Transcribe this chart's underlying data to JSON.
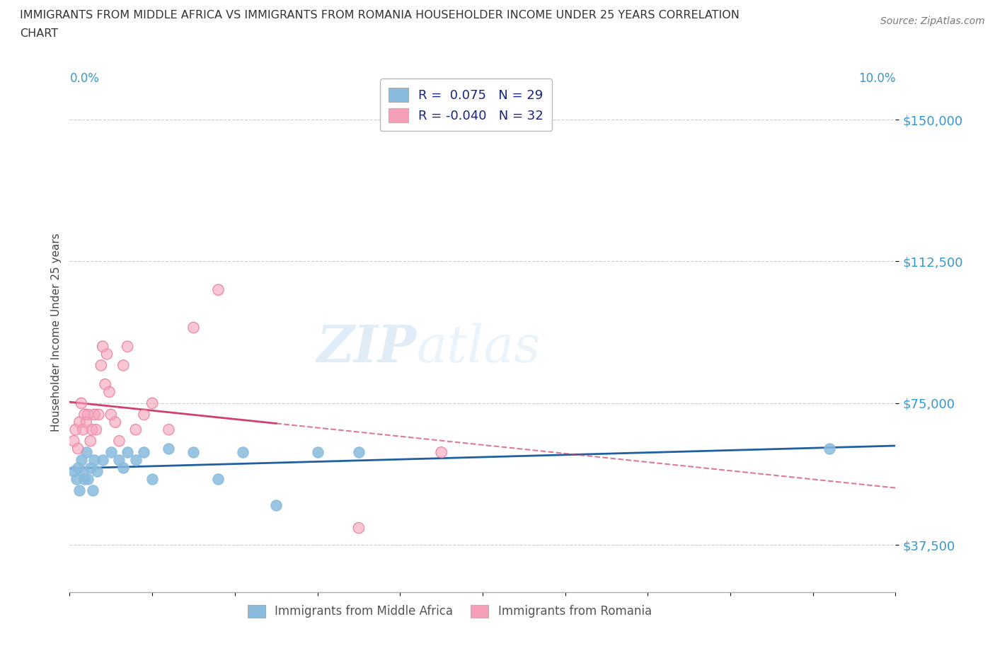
{
  "title_line1": "IMMIGRANTS FROM MIDDLE AFRICA VS IMMIGRANTS FROM ROMANIA HOUSEHOLDER INCOME UNDER 25 YEARS CORRELATION",
  "title_line2": "CHART",
  "source": "Source: ZipAtlas.com",
  "ylabel": "Householder Income Under 25 years",
  "xlim": [
    0.0,
    10.0
  ],
  "ylim": [
    25000,
    162500
  ],
  "yticks": [
    37500,
    75000,
    112500,
    150000
  ],
  "ytick_labels": [
    "$37,500",
    "$75,000",
    "$112,500",
    "$150,000"
  ],
  "color_blue": "#88bbdd",
  "color_pink": "#f5a0b8",
  "color_blue_line": "#2060a0",
  "color_pink_line": "#d04070",
  "color_axis_blue": "#3399cc",
  "watermark_zip": "ZIP",
  "watermark_atlas": "atlas",
  "blue_dots_x": [
    0.05,
    0.08,
    0.1,
    0.12,
    0.14,
    0.16,
    0.18,
    0.2,
    0.22,
    0.25,
    0.28,
    0.3,
    0.33,
    0.4,
    0.5,
    0.6,
    0.65,
    0.7,
    0.8,
    0.9,
    1.0,
    1.2,
    1.5,
    1.8,
    2.1,
    2.5,
    3.0,
    3.5,
    9.2
  ],
  "blue_dots_y": [
    57000,
    55000,
    58000,
    52000,
    60000,
    57000,
    55000,
    62000,
    55000,
    58000,
    52000,
    60000,
    57000,
    60000,
    62000,
    60000,
    58000,
    62000,
    60000,
    62000,
    55000,
    63000,
    62000,
    55000,
    62000,
    48000,
    62000,
    62000,
    63000
  ],
  "pink_dots_x": [
    0.05,
    0.07,
    0.1,
    0.12,
    0.14,
    0.16,
    0.18,
    0.2,
    0.22,
    0.25,
    0.27,
    0.3,
    0.32,
    0.35,
    0.38,
    0.4,
    0.43,
    0.45,
    0.48,
    0.5,
    0.55,
    0.6,
    0.65,
    0.7,
    0.8,
    0.9,
    1.0,
    1.2,
    1.5,
    1.8,
    3.5,
    4.5
  ],
  "pink_dots_y": [
    65000,
    68000,
    63000,
    70000,
    75000,
    68000,
    72000,
    70000,
    72000,
    65000,
    68000,
    72000,
    68000,
    72000,
    85000,
    90000,
    80000,
    88000,
    78000,
    72000,
    70000,
    65000,
    85000,
    90000,
    68000,
    72000,
    75000,
    68000,
    95000,
    105000,
    42000,
    62000
  ],
  "legend_label1": "R =  0.075   N = 29",
  "legend_label2": "R = -0.040   N = 32",
  "bottom_label1": "Immigrants from Middle Africa",
  "bottom_label2": "Immigrants from Romania"
}
